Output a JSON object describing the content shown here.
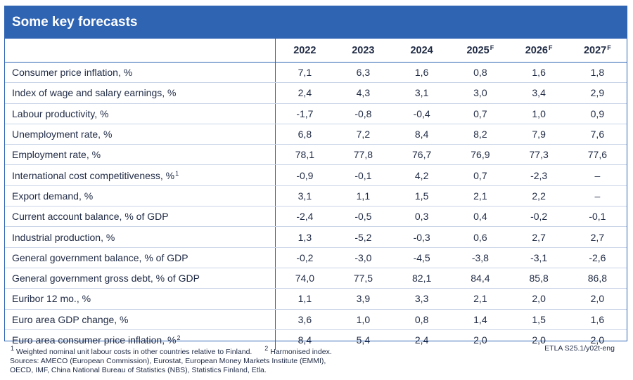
{
  "title": "Some key forecasts",
  "columns": [
    {
      "year": "2022",
      "mark": ""
    },
    {
      "year": "2023",
      "mark": ""
    },
    {
      "year": "2024",
      "mark": ""
    },
    {
      "year": "2025",
      "mark": "F"
    },
    {
      "year": "2026",
      "mark": "F"
    },
    {
      "year": "2027",
      "mark": "F"
    }
  ],
  "rows": [
    {
      "label": "Consumer price inflation, %",
      "note": "",
      "values": [
        "7,1",
        "6,3",
        "1,6",
        "0,8",
        "1,6",
        "1,8"
      ]
    },
    {
      "label": "Index of wage and salary earnings, %",
      "note": "",
      "values": [
        "2,4",
        "4,3",
        "3,1",
        "3,0",
        "3,4",
        "2,9"
      ]
    },
    {
      "label": "Labour productivity, %",
      "note": "",
      "values": [
        "-1,7",
        "-0,8",
        "-0,4",
        "0,7",
        "1,0",
        "0,9"
      ]
    },
    {
      "label": "Unemployment rate, %",
      "note": "",
      "values": [
        "6,8",
        "7,2",
        "8,4",
        "8,2",
        "7,9",
        "7,6"
      ]
    },
    {
      "label": "Employment rate, %",
      "note": "",
      "values": [
        "78,1",
        "77,8",
        "76,7",
        "76,9",
        "77,3",
        "77,6"
      ]
    },
    {
      "label": "International cost competitiveness, %",
      "note": "1",
      "values": [
        "-0,9",
        "-0,1",
        "4,2",
        "0,7",
        "-2,3",
        "–"
      ]
    },
    {
      "label": "Export demand, %",
      "note": "",
      "values": [
        "3,1",
        "1,1",
        "1,5",
        "2,1",
        "2,2",
        "–"
      ]
    },
    {
      "label": "Current account balance, % of GDP",
      "note": "",
      "values": [
        "-2,4",
        "-0,5",
        "0,3",
        "0,4",
        "-0,2",
        "-0,1"
      ]
    },
    {
      "label": "Industrial production, %",
      "note": "",
      "values": [
        "1,3",
        "-5,2",
        "-0,3",
        "0,6",
        "2,7",
        "2,7"
      ]
    },
    {
      "label": "General government balance, % of GDP",
      "note": "",
      "values": [
        "-0,2",
        "-3,0",
        "-4,5",
        "-3,8",
        "-3,1",
        "-2,6"
      ]
    },
    {
      "label": "General government gross debt, % of GDP",
      "note": "",
      "values": [
        "74,0",
        "77,5",
        "82,1",
        "84,4",
        "85,8",
        "86,8"
      ]
    },
    {
      "label": "Euribor 12 mo., %",
      "note": "",
      "values": [
        "1,1",
        "3,9",
        "3,3",
        "2,1",
        "2,0",
        "2,0"
      ]
    },
    {
      "label": "Euro area GDP change, %",
      "note": "",
      "values": [
        "3,6",
        "1,0",
        "0,8",
        "1,4",
        "1,5",
        "1,6"
      ]
    },
    {
      "label": "Euro area consumer price inflation, %",
      "note": "2",
      "values": [
        "8,4",
        "5,4",
        "2,4",
        "2,0",
        "2,0",
        "2,0"
      ]
    }
  ],
  "footnotes": {
    "note1_mark": "1",
    "note1_text": "Weighted nominal unit labour costs in other countries relative to Finland.",
    "note2_mark": "2",
    "note2_text": "Harmonised index.",
    "sources_line1": "Sources: AMECO (European Commission), Eurostat, European Money Markets Institute (EMMI),",
    "sources_line2": "OECD, IMF, China National Bureau of Statistics (NBS), Statistics Finland, Etla.",
    "code": "ETLA S25.1/y02t-eng"
  },
  "colors": {
    "accent": "#2f64b3",
    "text": "#1f2a44",
    "row_divider": "#c9d4e8"
  }
}
